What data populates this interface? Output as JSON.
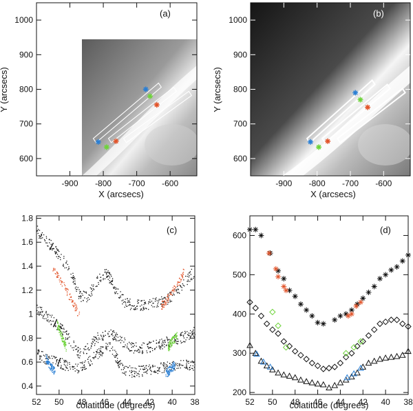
{
  "figure": {
    "colors": {
      "black": "#111111",
      "blue": "#2a7fd4",
      "green": "#6ed33a",
      "red": "#e2542a"
    }
  },
  "chart_data": [
    {
      "type": "heatmap",
      "panel_label": "(a)",
      "xlabel": "X (arcsecs)",
      "ylabel": "Y (arcsecs)",
      "xlim": [
        -1000,
        -520
      ],
      "ylim": [
        550,
        1050
      ],
      "x_ticks": [
        -900,
        -800,
        -700,
        -600
      ],
      "y_ticks": [
        600,
        700,
        800,
        900,
        1000
      ],
      "image_note": "solar limb image with white (no data) region at upper-left",
      "box_outlines": 3,
      "markers": {
        "blue": [
          [
            -815,
            648
          ],
          [
            -673,
            800
          ]
        ],
        "green": [
          [
            -790,
            633
          ],
          [
            -660,
            780
          ]
        ],
        "red": [
          [
            -762,
            650
          ],
          [
            -640,
            755
          ]
        ]
      }
    },
    {
      "type": "heatmap",
      "panel_label": "(b)",
      "xlabel": "X (arcsecs)",
      "ylabel": "Y (arcsecs)",
      "xlim": [
        -1000,
        -520
      ],
      "ylim": [
        550,
        1050
      ],
      "x_ticks": [
        -900,
        -800,
        -700,
        -600
      ],
      "y_ticks": [
        600,
        700,
        800,
        900,
        1000
      ],
      "box_outlines": 3,
      "markers": {
        "blue": [
          [
            -820,
            648
          ],
          [
            -685,
            790
          ]
        ],
        "green": [
          [
            -795,
            633
          ],
          [
            -670,
            770
          ]
        ],
        "red": [
          [
            -768,
            650
          ],
          [
            -648,
            748
          ]
        ]
      }
    },
    {
      "type": "scatter",
      "panel_label": "(c)",
      "xlabel": "colatitude (degrees)",
      "ylabel": "",
      "xlim": [
        52,
        38
      ],
      "ylim": [
        0.33,
        1.82
      ],
      "x_ticks": [
        52,
        50,
        48,
        46,
        44,
        42,
        40,
        38
      ],
      "y_ticks": [
        0.4,
        0.6,
        0.8,
        1.0,
        1.2,
        1.4,
        1.6,
        1.8
      ],
      "series": [
        {
          "name": "upper",
          "x": [
            52,
            51,
            50,
            49,
            48.2,
            47.5,
            46.5,
            45.8,
            45,
            44.2,
            43.5,
            42.5,
            41.5,
            40.5,
            39.5,
            38.5,
            38
          ],
          "values": [
            1.7,
            1.6,
            1.5,
            1.35,
            1.15,
            1.15,
            1.3,
            1.35,
            1.2,
            1.1,
            1.08,
            1.08,
            1.1,
            1.12,
            1.2,
            1.32,
            1.36
          ]
        },
        {
          "name": "middle",
          "x": [
            52,
            51,
            50,
            49,
            48.3,
            47.5,
            46.5,
            45.5,
            44.5,
            43.5,
            42.5,
            41.5,
            40.5,
            39.5,
            38.5,
            38
          ],
          "values": [
            1.05,
            0.98,
            0.9,
            0.78,
            0.68,
            0.72,
            0.82,
            0.85,
            0.78,
            0.72,
            0.72,
            0.74,
            0.77,
            0.8,
            0.83,
            0.86
          ]
        },
        {
          "name": "lower",
          "x": [
            52,
            51,
            50,
            49,
            48.3,
            47.5,
            46.5,
            45.5,
            44.5,
            43.5,
            42.5,
            41.5,
            40.5,
            39.5,
            38.5,
            38
          ],
          "values": [
            0.68,
            0.62,
            0.6,
            0.56,
            0.55,
            0.6,
            0.68,
            0.74,
            0.55,
            0.52,
            0.53,
            0.55,
            0.56,
            0.57,
            0.58,
            0.58
          ]
        },
        {
          "name": "red-left",
          "color": "red",
          "x": [
            50.6,
            50,
            49.4,
            48.8,
            48.2
          ],
          "values": [
            1.38,
            1.3,
            1.2,
            1.1,
            0.98
          ]
        },
        {
          "name": "red-right",
          "color": "red",
          "x": [
            41,
            40.5,
            40,
            39.5,
            39
          ],
          "values": [
            1.07,
            1.12,
            1.2,
            1.26,
            1.36
          ]
        },
        {
          "name": "green-left",
          "color": "green",
          "x": [
            50.2,
            49.8,
            49.4
          ],
          "values": [
            0.92,
            0.82,
            0.72
          ]
        },
        {
          "name": "green-right",
          "color": "green",
          "x": [
            40.4,
            40,
            39.6
          ],
          "values": [
            0.72,
            0.78,
            0.82
          ]
        },
        {
          "name": "blue-left",
          "color": "blue",
          "x": [
            51.2,
            50.8,
            50.4
          ],
          "values": [
            0.64,
            0.57,
            0.52
          ]
        },
        {
          "name": "blue-right",
          "color": "blue",
          "x": [
            40.6,
            40.2,
            39.8
          ],
          "values": [
            0.5,
            0.54,
            0.58
          ]
        }
      ]
    },
    {
      "type": "scatter",
      "panel_label": "(d)",
      "xlabel": "colatitude (degrees)",
      "ylabel": "",
      "xlim": [
        52,
        38
      ],
      "ylim": [
        195,
        650
      ],
      "x_ticks": [
        52,
        50,
        48,
        46,
        44,
        42,
        40,
        38
      ],
      "y_ticks": [
        200,
        300,
        400,
        500,
        600
      ],
      "series": [
        {
          "name": "asterisk",
          "marker": "asterisk",
          "x": [
            52,
            51.5,
            51,
            50.2,
            49.5,
            49,
            48.5,
            48,
            47.5,
            47,
            46.5,
            46,
            45.5,
            44.5,
            44,
            43.5,
            43,
            42.5,
            42,
            41.5,
            41,
            40.5,
            40,
            39.5,
            39,
            38.5,
            38
          ],
          "values": [
            615,
            615,
            600,
            555,
            510,
            490,
            460,
            445,
            425,
            410,
            395,
            378,
            375,
            385,
            395,
            400,
            410,
            425,
            440,
            455,
            470,
            490,
            500,
            512,
            520,
            535,
            550
          ]
        },
        {
          "name": "asterisk-red",
          "color": "red",
          "marker": "asterisk",
          "x": [
            50.3,
            49.7,
            49.5,
            49,
            48.8,
            43.3,
            43,
            42.6,
            42.2
          ],
          "values": [
            555,
            515,
            495,
            470,
            460,
            395,
            400,
            420,
            430
          ]
        },
        {
          "name": "diamond",
          "marker": "diamond",
          "x": [
            52,
            51.5,
            51,
            50.5,
            50,
            49.5,
            49,
            48.5,
            48,
            47.5,
            47,
            46.5,
            46,
            45.5,
            45,
            44.5,
            44,
            43.5,
            43,
            42.5,
            42,
            41.5,
            41,
            40.5,
            40,
            39.5,
            39,
            38.5,
            38
          ],
          "values": [
            430,
            415,
            395,
            375,
            360,
            350,
            330,
            318,
            305,
            295,
            285,
            275,
            268,
            260,
            262,
            265,
            275,
            290,
            300,
            318,
            330,
            345,
            360,
            375,
            380,
            385,
            385,
            375,
            368
          ]
        },
        {
          "name": "diamond-green",
          "color": "green",
          "marker": "diamond",
          "x": [
            50,
            49.5,
            48.8,
            43.5,
            42.8,
            42.2
          ],
          "values": [
            405,
            370,
            315,
            300,
            315,
            330
          ]
        },
        {
          "name": "triangle",
          "marker": "triangle",
          "x": [
            52,
            51.5,
            51,
            50.5,
            50,
            49.5,
            49,
            48.5,
            48,
            47.5,
            47,
            46.5,
            46,
            45.5,
            45,
            44.5,
            44,
            43.5,
            43,
            42.5,
            42,
            41.5,
            41,
            40.5,
            40,
            39.5,
            39,
            38.5,
            38
          ],
          "values": [
            320,
            300,
            280,
            268,
            258,
            250,
            245,
            242,
            238,
            232,
            228,
            225,
            222,
            220,
            212,
            218,
            225,
            232,
            240,
            250,
            265,
            275,
            280,
            285,
            288,
            290,
            292,
            295,
            305
          ]
        },
        {
          "name": "triangle-blue",
          "color": "blue",
          "marker": "triangle",
          "x": [
            51.4,
            50.8,
            50.2,
            43.4,
            42.8,
            42.2
          ],
          "values": [
            298,
            278,
            265,
            238,
            248,
            262
          ]
        }
      ]
    }
  ]
}
